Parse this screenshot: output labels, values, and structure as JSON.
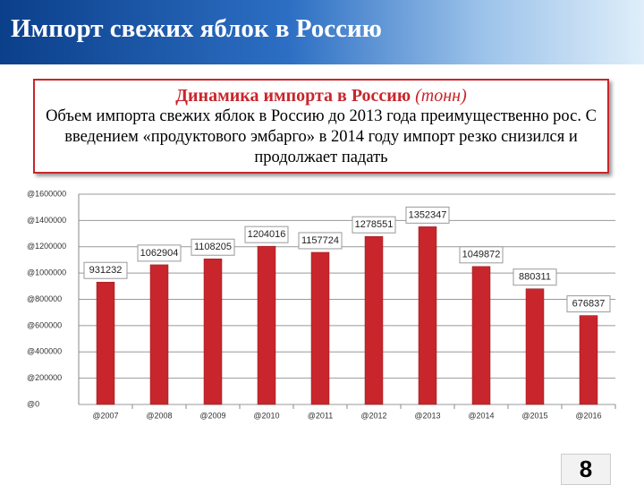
{
  "slide": {
    "title": "Импорт свежих яблок в Россию",
    "box_heading": "Динамика импорта в Россию",
    "box_unit": "(тонн)",
    "box_text": "Объем импорта свежих яблок в Россию до 2013 года преимущественно рос. С введением «продуктового эмбарго» в 2014 году импорт резко снизился и продолжает падать",
    "page_number": "8"
  },
  "chart_data": {
    "type": "bar",
    "categories": [
      "@2007",
      "@2008",
      "@2009",
      "@2010",
      "@2011",
      "@2012",
      "@2013",
      "@2014",
      "@2015",
      "@2016"
    ],
    "values": [
      931232,
      1062904,
      1108205,
      1204016,
      1157724,
      1278551,
      1352347,
      1049872,
      880311,
      676837
    ],
    "color": "#c8262c",
    "ylim": [
      0,
      1600000
    ],
    "yticks": [
      {
        "value": 0,
        "label": "@0"
      },
      {
        "value": 200000,
        "label": "@200000"
      },
      {
        "value": 400000,
        "label": "@400000"
      },
      {
        "value": 600000,
        "label": "@600000"
      },
      {
        "value": 800000,
        "label": "@800000"
      },
      {
        "value": 1000000,
        "label": "@1000000"
      },
      {
        "value": 1200000,
        "label": "@1200000"
      },
      {
        "value": 1400000,
        "label": "@1400000"
      },
      {
        "value": 1600000,
        "label": "@1600000"
      }
    ],
    "grid": true
  }
}
